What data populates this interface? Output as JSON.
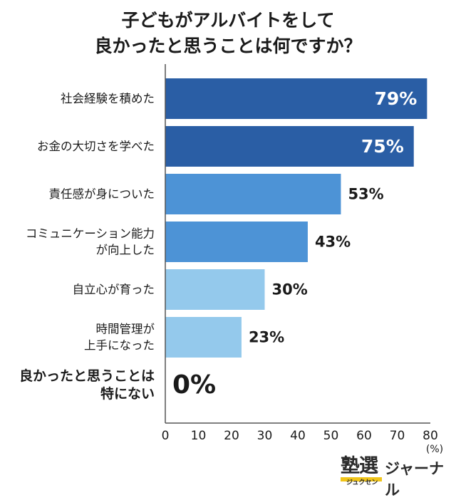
{
  "chart_data": {
    "type": "bar",
    "orientation": "horizontal",
    "title_lines": [
      "子どもがアルバイトをして",
      "良かったと思うことは何ですか？"
    ],
    "categories": [
      [
        "社会経験を積めた"
      ],
      [
        "お金の大切さを学べた"
      ],
      [
        "責任感が身についた"
      ],
      [
        "コミュニケーション能力",
        "が向上した"
      ],
      [
        "自立心が育った"
      ],
      [
        "時間管理が",
        "上手になった"
      ],
      [
        "良かったと思うことは",
        "特にない"
      ]
    ],
    "values": [
      79,
      75,
      53,
      43,
      30,
      23,
      0
    ],
    "value_labels": [
      "79%",
      "75%",
      "53%",
      "43%",
      "30%",
      "23%",
      "0%"
    ],
    "bar_colors": [
      "#2a5ea5",
      "#2a5ea5",
      "#4d93d6",
      "#4d93d6",
      "#94c9ec",
      "#94c9ec",
      "#94c9ec"
    ],
    "label_inside": [
      true,
      true,
      false,
      false,
      false,
      false,
      false
    ],
    "xlim": [
      0,
      80
    ],
    "xticks": [
      "0",
      "10",
      "20",
      "30",
      "40",
      "50",
      "60",
      "70",
      "80"
    ],
    "unit_label": "(%)",
    "grid": false
  },
  "logo": {
    "main": "塾選",
    "sub": "ジュクセン",
    "side": "ジャーナル"
  }
}
